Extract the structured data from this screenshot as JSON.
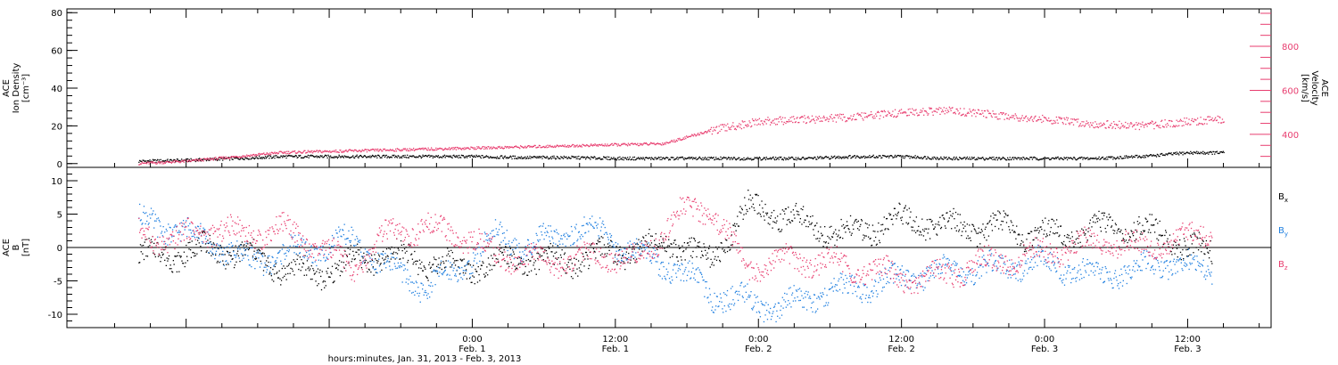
{
  "chart_data": [
    {
      "type": "scatter",
      "panel": "top",
      "ylabel": [
        "ACE",
        "Ion Density",
        "[cm⁻³]"
      ],
      "ylim": [
        -2,
        82
      ],
      "yticks": [
        0,
        20,
        40,
        60,
        80
      ],
      "y2label": [
        "ACE",
        "Velocity",
        "[km/s]"
      ],
      "y2lim": [
        250,
        970
      ],
      "y2ticks": [
        400,
        600,
        800
      ],
      "series": [
        {
          "axis": "left",
          "color": "#000000",
          "x": [
            -28,
            -24,
            -20,
            -16,
            -12,
            -8,
            -4,
            0,
            4,
            8,
            12,
            16,
            20,
            24,
            28,
            32,
            36,
            40,
            44,
            48,
            52,
            56,
            60,
            63
          ],
          "values": [
            1.5,
            2,
            3,
            4,
            4,
            4,
            4,
            4,
            3.5,
            3.5,
            3,
            3,
            3,
            3,
            3,
            4,
            4,
            3,
            3,
            3,
            3,
            4,
            6,
            6
          ]
        },
        {
          "axis": "right",
          "color": "#e83d6f",
          "x": [
            -28,
            -24,
            -20,
            -16,
            -12,
            -8,
            -4,
            0,
            4,
            8,
            12,
            16,
            20,
            24,
            28,
            32,
            36,
            40,
            44,
            48,
            52,
            56,
            60,
            63
          ],
          "values": [
            270,
            280,
            300,
            320,
            325,
            330,
            335,
            340,
            345,
            350,
            355,
            360,
            420,
            460,
            470,
            480,
            500,
            510,
            490,
            470,
            450,
            440,
            460,
            470
          ]
        }
      ]
    },
    {
      "type": "scatter",
      "panel": "bottom",
      "ylabel": [
        "ACE",
        "B",
        "[nT]"
      ],
      "ylim": [
        -12,
        12
      ],
      "yticks": [
        -10,
        -5,
        0,
        5,
        10
      ],
      "series": [
        {
          "name": "B",
          "sub": "x",
          "color": "#000000",
          "x": [
            -28,
            -25,
            -22,
            -19,
            -16,
            -13,
            -10,
            -7,
            -4,
            -1,
            2,
            5,
            8,
            11,
            14,
            17,
            20,
            23,
            26,
            29,
            32,
            35,
            38,
            41,
            44,
            47,
            50,
            53,
            56,
            59,
            62
          ],
          "values": [
            -1,
            -1,
            0,
            -1,
            -3,
            -4,
            -2,
            -1,
            -2,
            -3,
            -2,
            -2,
            -2,
            -1,
            0,
            1,
            -2,
            6,
            5,
            3,
            2,
            4,
            4,
            3,
            3,
            2,
            2,
            3,
            3,
            1,
            -1
          ]
        },
        {
          "name": "B",
          "sub": "y",
          "color": "#1f7fe0",
          "x": [
            -28,
            -25,
            -22,
            -19,
            -16,
            -13,
            -10,
            -7,
            -4,
            -1,
            2,
            5,
            8,
            11,
            14,
            17,
            20,
            23,
            26,
            29,
            32,
            35,
            38,
            41,
            44,
            47,
            50,
            53,
            56,
            59,
            62
          ],
          "values": [
            4,
            3,
            1,
            -2,
            -1,
            0,
            1,
            -3,
            -6,
            -3,
            2,
            0,
            3,
            2,
            -1,
            -3,
            -7,
            -8,
            -9,
            -7,
            -6,
            -5,
            -4,
            -3,
            -3,
            -2,
            -3,
            -4,
            -3,
            -2,
            -4
          ]
        },
        {
          "name": "B",
          "sub": "z",
          "color": "#e83d6f",
          "x": [
            -28,
            -25,
            -22,
            -19,
            -16,
            -13,
            -10,
            -7,
            -4,
            -1,
            2,
            5,
            8,
            11,
            14,
            17,
            20,
            23,
            26,
            29,
            32,
            35,
            38,
            41,
            44,
            47,
            50,
            53,
            56,
            59,
            62
          ],
          "values": [
            2,
            1,
            3,
            2,
            3,
            0,
            -3,
            2,
            3,
            2,
            -1,
            -2,
            -2,
            -1,
            -2,
            5,
            6,
            -3,
            -2,
            -2,
            -3,
            -4,
            -5,
            -3,
            -2,
            -1,
            0,
            1,
            0,
            1,
            3
          ]
        }
      ]
    }
  ],
  "x_axis": {
    "xlim": [
      -34,
      67
    ],
    "ticks": [
      {
        "x": 0,
        "time": "0:00",
        "day": "Feb. 1"
      },
      {
        "x": 12,
        "time": "12:00",
        "day": "Feb. 1"
      },
      {
        "x": 24,
        "time": "0:00",
        "day": "Feb. 2"
      },
      {
        "x": 36,
        "time": "12:00",
        "day": "Feb. 2"
      },
      {
        "x": 48,
        "time": "0:00",
        "day": "Feb. 3"
      },
      {
        "x": 60,
        "time": "12:00",
        "day": "Feb. 3"
      }
    ],
    "label": "hours:minutes, Jan. 31, 2013 - Feb.  3, 2013"
  },
  "legend": {
    "entries": [
      {
        "letter": "B",
        "sub": "x",
        "color": "#000000"
      },
      {
        "letter": "B",
        "sub": "y",
        "color": "#1f7fe0"
      },
      {
        "letter": "B",
        "sub": "z",
        "color": "#e83d6f"
      }
    ]
  }
}
